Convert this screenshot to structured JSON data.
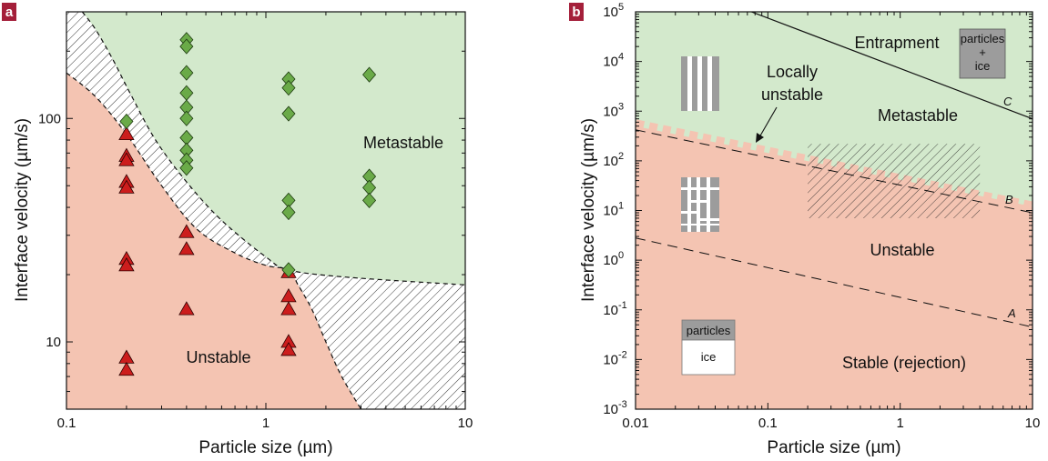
{
  "colors": {
    "badge": "#a41f3a",
    "unstable": "#f4c4b2",
    "metastable": "#d3e9cc",
    "triangle": "#cc1d1d",
    "diamond": "#6aaa48",
    "inset_gray": "#9c9c9c"
  },
  "chart_data": [
    {
      "panel": "a",
      "type": "scatter",
      "xscale": "log",
      "yscale": "log",
      "xlabel": "Particle size (µm)",
      "ylabel": "Interface velocity (µm/s)",
      "xlim": [
        0.1,
        10
      ],
      "ylim": [
        5,
        300
      ],
      "xticks": [
        {
          "v": 0.1,
          "label": "0.1"
        },
        {
          "v": 1,
          "label": "1"
        },
        {
          "v": 10,
          "label": "10"
        }
      ],
      "yticks": [
        {
          "v": 10,
          "label": "10"
        },
        {
          "v": 100,
          "label": "100"
        }
      ],
      "regions": [
        {
          "label": "Metastable",
          "x": 2.3,
          "y": 67
        },
        {
          "label": "Unstable",
          "x": 0.3,
          "y": 8.2
        }
      ],
      "boundaries": {
        "upper": [
          [
            0.12,
            300
          ],
          [
            0.14,
            250
          ],
          [
            0.17,
            185
          ],
          [
            0.21,
            128
          ],
          [
            0.28,
            80
          ],
          [
            0.4,
            52
          ],
          [
            0.6,
            35
          ],
          [
            1.0,
            24
          ],
          [
            1.3,
            21
          ],
          [
            2.5,
            19.5
          ],
          [
            10,
            18
          ]
        ],
        "lower": [
          [
            0.1,
            160
          ],
          [
            0.14,
            125
          ],
          [
            0.2,
            85
          ],
          [
            0.3,
            50
          ],
          [
            0.45,
            32
          ],
          [
            0.7,
            25
          ],
          [
            1.0,
            22
          ],
          [
            1.3,
            21
          ],
          [
            1.45,
            18
          ],
          [
            1.7,
            14
          ],
          [
            2.0,
            10
          ],
          [
            2.4,
            7
          ],
          [
            3.0,
            5
          ]
        ]
      },
      "series": [
        {
          "name": "unstable",
          "marker": "triangle",
          "points": [
            [
              0.2,
              85
            ],
            [
              0.2,
              68
            ],
            [
              0.2,
              65
            ],
            [
              0.2,
              52
            ],
            [
              0.2,
              49
            ],
            [
              0.2,
              23.5
            ],
            [
              0.2,
              22
            ],
            [
              0.2,
              8.5
            ],
            [
              0.2,
              7.5
            ],
            [
              0.4,
              31
            ],
            [
              0.4,
              26
            ],
            [
              0.4,
              14
            ],
            [
              1.3,
              20.5
            ],
            [
              1.3,
              16
            ],
            [
              1.3,
              14
            ],
            [
              1.3,
              10
            ],
            [
              1.3,
              9.2
            ]
          ]
        },
        {
          "name": "metastable",
          "marker": "diamond",
          "points": [
            [
              0.2,
              97
            ],
            [
              0.4,
              225
            ],
            [
              0.4,
              210
            ],
            [
              0.4,
              160
            ],
            [
              0.4,
              130
            ],
            [
              0.4,
              112
            ],
            [
              0.4,
              100
            ],
            [
              0.4,
              82
            ],
            [
              0.4,
              72
            ],
            [
              0.4,
              65
            ],
            [
              0.4,
              60
            ],
            [
              1.3,
              150
            ],
            [
              1.3,
              137
            ],
            [
              1.3,
              105
            ],
            [
              1.3,
              43
            ],
            [
              1.3,
              38
            ],
            [
              1.3,
              21
            ],
            [
              3.3,
              157
            ],
            [
              3.3,
              55
            ],
            [
              3.3,
              49
            ],
            [
              3.3,
              43
            ]
          ]
        }
      ]
    },
    {
      "panel": "b",
      "type": "area",
      "xscale": "log",
      "yscale": "log",
      "xlabel": "Particle size (µm)",
      "ylabel": "Interface velocity (µm/s)",
      "xlim": [
        0.01,
        10
      ],
      "ylim": [
        0.001,
        100000
      ],
      "xticks": [
        {
          "v": 0.01,
          "label": "0.01"
        },
        {
          "v": 0.1,
          "label": "0.1"
        },
        {
          "v": 1,
          "label": "1"
        },
        {
          "v": 10,
          "label": "10"
        }
      ],
      "yticks": [
        {
          "v": 0.001,
          "base": "10",
          "exp": "-3"
        },
        {
          "v": 0.01,
          "base": "10",
          "exp": "-2"
        },
        {
          "v": 0.1,
          "base": "10",
          "exp": "-1"
        },
        {
          "v": 1,
          "base": "10",
          "exp": "0"
        },
        {
          "v": 10,
          "base": "10",
          "exp": "1"
        },
        {
          "v": 100,
          "base": "10",
          "exp": "2"
        },
        {
          "v": 1000,
          "base": "10",
          "exp": "3"
        },
        {
          "v": 10000,
          "base": "10",
          "exp": "4"
        },
        {
          "v": 100000,
          "base": "10",
          "exp": "5"
        }
      ],
      "lines": [
        {
          "name": "A",
          "style": "dashed",
          "points": [
            [
              0.01,
              2.8
            ],
            [
              10,
              0.045
            ]
          ]
        },
        {
          "name": "B",
          "style": "dashed",
          "points": [
            [
              0.01,
              420
            ],
            [
              10,
              9
            ]
          ]
        },
        {
          "name": "C",
          "style": "solid",
          "points": [
            [
              0.075,
              100000
            ],
            [
              10,
              700
            ]
          ]
        }
      ],
      "transition_band": {
        "points": [
          [
            0.01,
            520
          ],
          [
            10,
            11.5
          ]
        ]
      },
      "hatched_box": {
        "x": [
          0.2,
          4
        ],
        "y": [
          7,
          220
        ]
      },
      "regions": [
        {
          "label": "Entrapment",
          "x": 0.55,
          "y": 33000
        },
        {
          "label": "Metastable",
          "x": 0.9,
          "y": 1100
        },
        {
          "label": "Unstable",
          "x": 0.85,
          "y": 4
        },
        {
          "label": "Stable (rejection)",
          "x": 0.95,
          "y": 0.011
        }
      ],
      "annotation": {
        "label_line1": "Locally",
        "label_line2": "unstable",
        "arrow_to": [
          0.08,
          180
        ]
      },
      "line_labels": {
        "A": "A",
        "B": "B",
        "C": "C"
      },
      "insets": {
        "entrapment_box_line1": "particles",
        "entrapment_box_line2": "+",
        "entrapment_box_line3": "ice",
        "stable_box_top": "particles",
        "stable_box_bottom": "ice"
      }
    }
  ]
}
